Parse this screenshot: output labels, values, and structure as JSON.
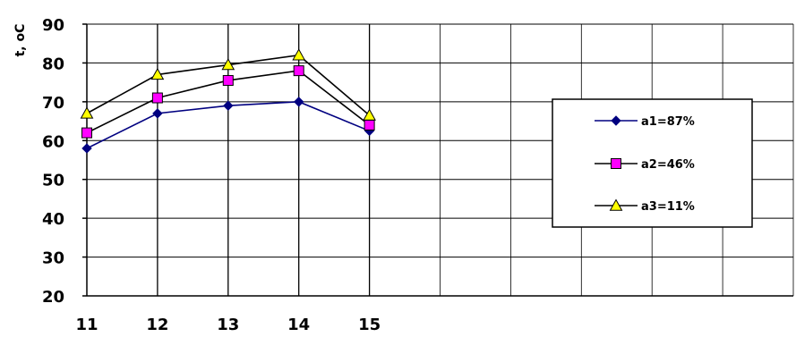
{
  "chart_data": {
    "type": "line",
    "ylabel": "t, oC",
    "xlabel": "",
    "x_ticks": [
      "11",
      "12",
      "13",
      "14",
      "15"
    ],
    "x_grid_count": 10,
    "ylim": [
      20,
      90
    ],
    "y_ticks": [
      "20",
      "30",
      "40",
      "50",
      "60",
      "70",
      "80",
      "90"
    ],
    "grid": true,
    "legend_position": "right",
    "x": [
      11,
      12,
      13,
      14,
      15
    ],
    "series": [
      {
        "name": "a1=87%",
        "values": [
          58,
          67,
          69,
          70,
          62.5
        ],
        "color": "#000080",
        "marker": "diamond",
        "marker_color": "#000080"
      },
      {
        "name": "a2=46%",
        "values": [
          62,
          71,
          75.5,
          78,
          64
        ],
        "color": "#000000",
        "marker": "square",
        "marker_color": "#ff00ff"
      },
      {
        "name": "a3=11%",
        "values": [
          67,
          77,
          79.5,
          82,
          66.5
        ],
        "color": "#000000",
        "marker": "triangle",
        "marker_color": "#ffff00"
      }
    ]
  }
}
